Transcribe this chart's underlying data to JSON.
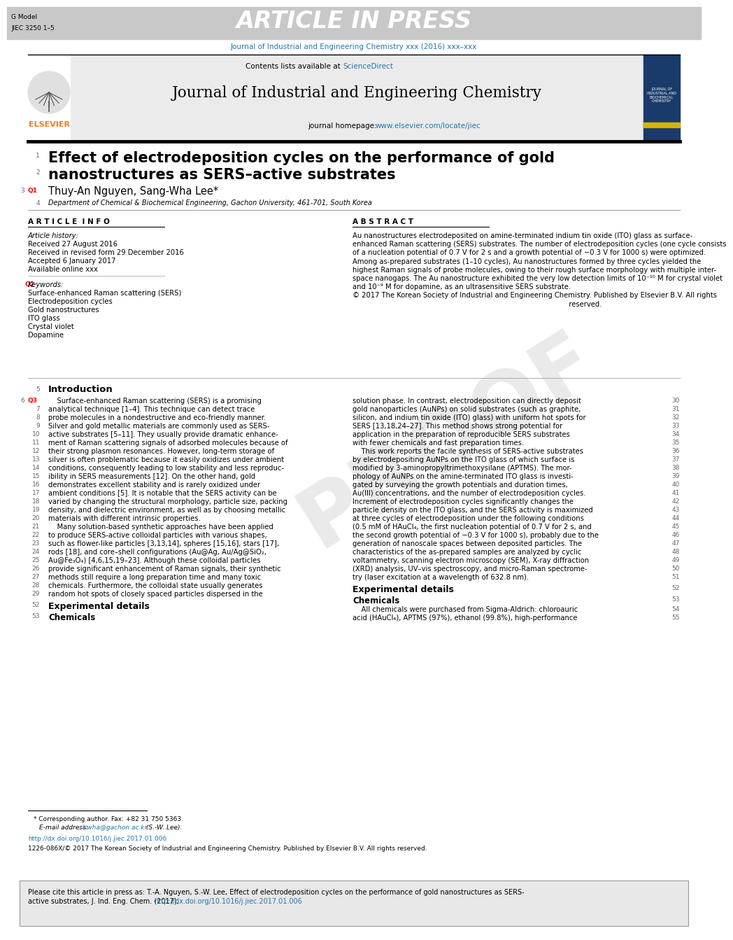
{
  "header_bar_color": "#c8c8c8",
  "header_text": "ARTICLE IN PRESS",
  "header_left_line1": "G Model",
  "header_left_line2": "JIEC 3250 1–5",
  "journal_ref_line": "Journal of Industrial and Engineering Chemistry xxx (2016) xxx–xxx",
  "journal_ref_color": "#2176ae",
  "sciencedirect_color": "#2176ae",
  "journal_homepage_color": "#2176ae",
  "elsevier_color": "#f47920",
  "article_title_line1": "Effect of electrodeposition cycles on the performance of gold",
  "article_title_line2": "nanostructures as SERS–active substrates",
  "authors": "Thuy-An Nguyen, Sang-Wha Lee",
  "affiliation": "Department of Chemical & Biochemical Engineering, Gachon University, 461-701, South Korea",
  "article_info_title": "A R T I C L E  I N F O",
  "abstract_title": "A B S T R A C T",
  "article_history_label": "Article history:",
  "received1": "Received 27 August 2016",
  "received2": "Received in revised form 29 December 2016",
  "accepted": "Accepted 6 January 2017",
  "available": "Available online xxx",
  "keywords_label": "Keywords:",
  "keywords": [
    "Surface-enhanced Raman scattering (SERS)",
    "Electrodeposition cycles",
    "Gold nanostructures",
    "ITO glass",
    "Crystal violet",
    "Dopamine"
  ],
  "abstract_lines": [
    "Au nanostructures electrodeposited on amine-terminated indium tin oxide (ITO) glass as surface-",
    "enhanced Raman scattering (SERS) substrates. The number of electrodeposition cycles (one cycle consists",
    "of a nucleation potential of 0.7 V for 2 s and a growth potential of −0.3 V for 1000 s) were optimized.",
    "Among as-prepared substrates (1–10 cycles), Au nanostructures formed by three cycles yielded the",
    "highest Raman signals of probe molecules, owing to their rough surface morphology with multiple inter-",
    "space nanogaps. The Au nanostructure exhibited the very low detection limits of 10⁻¹⁰ M for crystal violet",
    "and 10⁻⁹ M for dopamine, as an ultrasensitive SERS substrate.",
    "© 2017 The Korean Society of Industrial and Engineering Chemistry. Published by Elsevier B.V. All rights",
    "                                                                                                   reserved."
  ],
  "intro_title": "Introduction",
  "left_col_lines": [
    "    Surface-enhanced Raman scattering (SERS) is a promising",
    "analytical technique [1–4]. This technique can detect trace",
    "probe molecules in a nondestructive and eco-friendly manner.",
    "Silver and gold metallic materials are commonly used as SERS-",
    "active substrates [5–11]. They usually provide dramatic enhance-",
    "ment of Raman scattering signals of adsorbed molecules because of",
    "their strong plasmon resonances. However, long-term storage of",
    "silver is often problematic because it easily oxidizes under ambient",
    "conditions, consequently leading to low stability and less reproduc-",
    "ibility in SERS measurements [12]. On the other hand, gold",
    "demonstrates excellent stability and is rarely oxidized under",
    "ambient conditions [5]. It is notable that the SERS activity can be",
    "varied by changing the structural morphology, particle size, packing",
    "density, and dielectric environment, as well as by choosing metallic",
    "materials with different intrinsic properties.",
    "    Many solution-based synthetic approaches have been applied",
    "to produce SERS-active colloidal particles with various shapes,",
    "such as flower-like particles [3,13,14], spheres [15,16], stars [17],",
    "rods [18], and core–shell configurations (Au@Ag, Au/Ag@SiO₂,",
    "Au@Fe₃O₄) [4,6,15,19–23]. Although these colloidal particles",
    "provide significant enhancement of Raman signals, their synthetic",
    "methods still require a long preparation time and many toxic",
    "chemicals. Furthermore, the colloidal state usually generates",
    "random hot spots of closely spaced particles dispersed in the"
  ],
  "left_line_nums": [
    "6",
    "7",
    "8",
    "9",
    "10",
    "11",
    "12",
    "13",
    "14",
    "15",
    "16",
    "17",
    "18",
    "19",
    "20",
    "21",
    "22",
    "23",
    "24",
    "25",
    "26",
    "27",
    "28",
    "29"
  ],
  "right_col_lines": [
    "solution phase. In contrast, electrodeposition can directly deposit",
    "gold nanoparticles (AuNPs) on solid substrates (such as graphite,",
    "silicon, and indium tin oxide (ITO) glass) with uniform hot spots for",
    "SERS [13,18,24–27]. This method shows strong potential for",
    "application in the preparation of reproducible SERS substrates",
    "with fewer chemicals and fast preparation times.",
    "    This work reports the facile synthesis of SERS-active substrates",
    "by electrodepositing AuNPs on the ITO glass of which surface is",
    "modified by 3-aminopropyltrimethoxysilane (APTMS). The mor-",
    "phology of AuNPs on the amine-terminated ITO glass is investi-",
    "gated by surveying the growth potentials and duration times,",
    "Au(III) concentrations, and the number of electrodeposition cycles.",
    "Increment of electrodeposition cycles significantly changes the",
    "particle density on the ITO glass, and the SERS activity is maximized",
    "at three cycles of electrodeposition under the following conditions",
    "(0.5 mM of HAuCl₄, the first nucleation potential of 0.7 V for 2 s, and",
    "the second growth potential of −0.3 V for 1000 s), probably due to the",
    "generation of nanoscale spaces between deposited particles. The",
    "characteristics of the as-prepared samples are analyzed by cyclic",
    "voltammetry, scanning electron microscopy (SEM), X-ray diffraction",
    "(XRD) analysis, UV–vis spectroscopy, and micro-Raman spectrome-",
    "try (laser excitation at a wavelength of 632.8 nm)."
  ],
  "right_line_nums": [
    "30",
    "31",
    "32",
    "33",
    "34",
    "35",
    "36",
    "37",
    "38",
    "39",
    "40",
    "41",
    "42",
    "43",
    "44",
    "45",
    "46",
    "47",
    "48",
    "49",
    "50",
    "51"
  ],
  "exp_details_title": "Experimental details",
  "chemicals_title": "Chemicals",
  "chemicals_lines": [
    "    All chemicals were purchased from Sigma-Aldrich: chloroauric",
    "acid (HAuCl₄), APTMS (97%), ethanol (99.8%), high-performance"
  ],
  "corresponding_text": "* Corresponding author. Fax: +82 31 750 5363.",
  "email_label": "E-mail address: ",
  "email_link": "lswha@gachon.ac.kr",
  "email_suffix": " (S.-W. Lee).",
  "doi_url": "http://dx.doi.org/10.1016/j.jiec.2017.01.006",
  "issn_text": "1226-086X/© 2017 The Korean Society of Industrial and Engineering Chemistry. Published by Elsevier B.V. All rights reserved.",
  "footer_line1": "Please cite this article in press as: T.-A. Nguyen, S.-W. Lee, Effect of electrodeposition cycles on the performance of gold nanostructures as SERS-",
  "footer_line2": "active substrates, J. Ind. Eng. Chem. (2017), http://dx.doi.org/10.1016/j.jiec.2017.01.006",
  "watermark": "PROOF",
  "cover_text": "JOURNAL OF\nINDUSTRIAL AND\nBIOCHEMICAL\nCHEMISTRY"
}
